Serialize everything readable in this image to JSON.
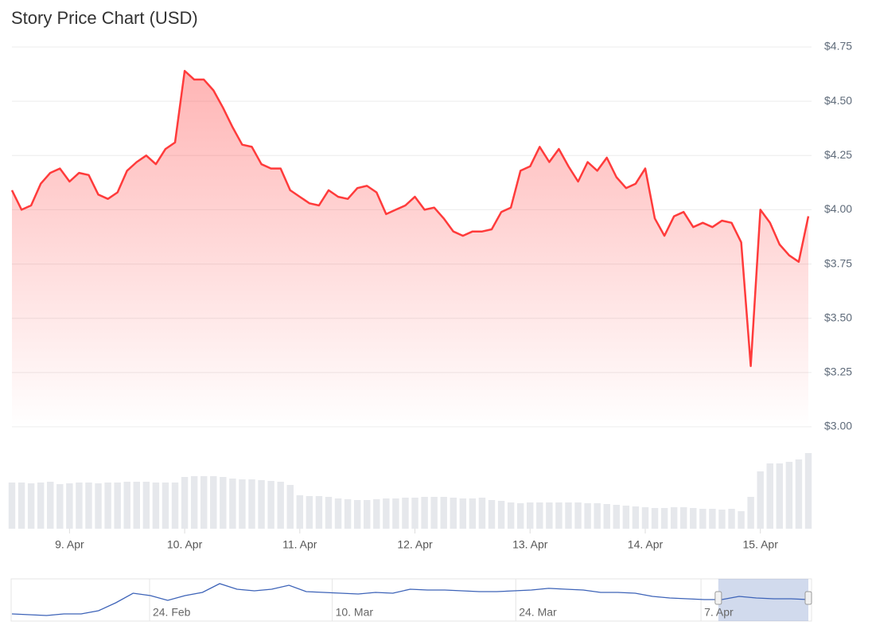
{
  "chart_data": {
    "type": "line",
    "title": "Story Price Chart (USD)",
    "color": "#ff3b3b",
    "grid": true,
    "xlim": [
      0,
      83
    ],
    "xticks": [
      {
        "value": 6,
        "label": "9. Apr"
      },
      {
        "value": 18,
        "label": "10. Apr"
      },
      {
        "value": 30,
        "label": "11. Apr"
      },
      {
        "value": 42,
        "label": "12. Apr"
      },
      {
        "value": 54,
        "label": "13. Apr"
      },
      {
        "value": 66,
        "label": "14. Apr"
      },
      {
        "value": 78,
        "label": "15. Apr"
      }
    ],
    "ylim": [
      3.0,
      4.75
    ],
    "yticks": [
      {
        "value": 3.0,
        "label": "$3.00"
      },
      {
        "value": 3.25,
        "label": "$3.25"
      },
      {
        "value": 3.5,
        "label": "$3.50"
      },
      {
        "value": 3.75,
        "label": "$3.75"
      },
      {
        "value": 4.0,
        "label": "$4.00"
      },
      {
        "value": 4.25,
        "label": "$4.25"
      },
      {
        "value": 4.5,
        "label": "$4.50"
      },
      {
        "value": 4.75,
        "label": "$4.75"
      }
    ],
    "y2lim": [
      0,
      100
    ],
    "series": [
      {
        "name": "Price",
        "color": "#ff3b3b",
        "values": [
          4.09,
          4.0,
          4.02,
          4.12,
          4.17,
          4.19,
          4.13,
          4.17,
          4.16,
          4.07,
          4.05,
          4.08,
          4.18,
          4.22,
          4.25,
          4.21,
          4.28,
          4.31,
          4.64,
          4.6,
          4.6,
          4.55,
          4.47,
          4.38,
          4.3,
          4.29,
          4.21,
          4.19,
          4.19,
          4.09,
          4.06,
          4.03,
          4.02,
          4.09,
          4.06,
          4.05,
          4.1,
          4.11,
          4.08,
          3.98,
          4.0,
          4.02,
          4.06,
          4.0,
          4.01,
          3.96,
          3.9,
          3.88,
          3.9,
          3.9,
          3.91,
          3.99,
          4.01,
          4.18,
          4.2,
          4.29,
          4.22,
          4.28,
          4.2,
          4.13,
          4.22,
          4.18,
          4.24,
          4.15,
          4.1,
          4.12,
          4.19,
          3.96,
          3.88,
          3.97,
          3.99,
          3.92,
          3.94,
          3.92,
          3.95,
          3.94,
          3.85,
          3.28,
          4.0,
          3.94,
          3.84,
          3.79,
          3.76,
          3.97
        ]
      },
      {
        "name": "Volume",
        "color": "#e6e8ec",
        "axis": "y2",
        "values": [
          58,
          58,
          57,
          58,
          59,
          56,
          57,
          58,
          58,
          57,
          58,
          58,
          59,
          59,
          59,
          58,
          58,
          58,
          65,
          66,
          66,
          66,
          65,
          63,
          62,
          62,
          61,
          60,
          59,
          55,
          42,
          41,
          41,
          40,
          38,
          37,
          36,
          36,
          37,
          38,
          38,
          39,
          39,
          40,
          40,
          40,
          39,
          38,
          38,
          39,
          36,
          35,
          33,
          32,
          33,
          33,
          33,
          33,
          33,
          33,
          32,
          32,
          31,
          30,
          29,
          28,
          27,
          26,
          26,
          27,
          27,
          26,
          25,
          25,
          24,
          25,
          22,
          40,
          72,
          82,
          82,
          84,
          87,
          95
        ]
      }
    ],
    "navigator": {
      "type": "line",
      "color": "#3d63b8",
      "xlim": [
        0,
        46
      ],
      "ylim": [
        1,
        6.5
      ],
      "xticks": [
        {
          "value": 7.95,
          "label": "24. Feb"
        },
        {
          "value": 18.5,
          "label": "10. Mar"
        },
        {
          "value": 29.1,
          "label": "24. Mar"
        },
        {
          "value": 39.8,
          "label": "7. Apr"
        }
      ],
      "selection": [
        40.8,
        46
      ],
      "values": [
        1.93,
        1.83,
        1.73,
        1.93,
        1.93,
        2.35,
        3.39,
        4.63,
        4.32,
        3.7,
        4.32,
        4.74,
        5.88,
        5.15,
        4.94,
        5.15,
        5.67,
        4.84,
        4.74,
        4.63,
        4.53,
        4.74,
        4.63,
        5.15,
        5.05,
        5.05,
        4.94,
        4.84,
        4.84,
        4.94,
        5.05,
        5.26,
        5.15,
        5.05,
        4.74,
        4.74,
        4.63,
        4.22,
        4.01,
        3.91,
        3.8,
        3.8,
        4.22,
        4.01,
        3.91,
        3.91,
        3.8
      ]
    }
  }
}
